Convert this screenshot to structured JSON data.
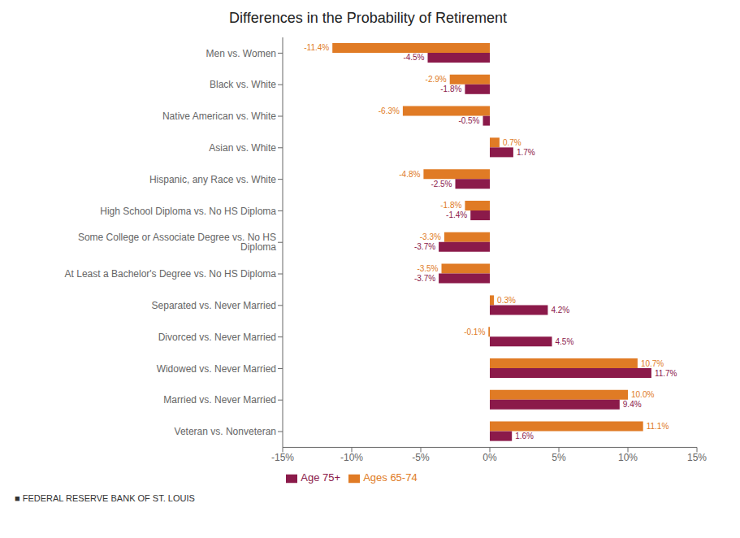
{
  "chart_data": {
    "type": "bar",
    "title": "Differences in the Probability of Retirement",
    "orientation": "horizontal",
    "categories": [
      "Men vs. Women",
      "Black vs. White",
      "Native American vs. White",
      "Asian vs. White",
      "Hispanic, any Race vs. White",
      "High School Diploma vs. No HS Diploma",
      "Some College or Associate Degree vs. No HS Diploma",
      "At Least a Bachelor's Degree vs. No HS Diploma",
      "Separated vs. Never Married",
      "Divorced vs. Never Married",
      "Widowed vs. Never Married",
      "Married vs. Never Married",
      "Veteran vs. Nonveteran"
    ],
    "series": [
      {
        "name": "Ages 65-74",
        "color": "#E07B25",
        "values": [
          -11.4,
          -2.9,
          -6.3,
          0.7,
          -4.8,
          -1.8,
          -3.3,
          -3.5,
          0.3,
          -0.1,
          10.7,
          10.0,
          11.1
        ],
        "value_labels": [
          "-11.4%",
          "-2.9%",
          "-6.3%",
          "0.7%",
          "-4.8%",
          "-1.8%",
          "-3.3%",
          "-3.5%",
          "0.3%",
          "-0.1%",
          "10.7%",
          "10.0%",
          "11.1%"
        ]
      },
      {
        "name": "Age 75+",
        "color": "#8B1A4A",
        "values": [
          -4.5,
          -1.8,
          -0.5,
          1.7,
          -2.5,
          -1.4,
          -3.7,
          -3.7,
          4.2,
          4.5,
          11.7,
          9.4,
          1.6
        ],
        "value_labels": [
          "-4.5%",
          "-1.8%",
          "-0.5%",
          "1.7%",
          "-2.5%",
          "-1.4%",
          "-3.7%",
          "-3.7%",
          "4.2%",
          "4.5%",
          "11.7%",
          "9.4%",
          "1.6%"
        ]
      }
    ],
    "xlim": [
      -15,
      15
    ],
    "xticks": [
      {
        "value": -15,
        "label": "-15%"
      },
      {
        "value": -10,
        "label": "-10%"
      },
      {
        "value": -5,
        "label": "-5%"
      },
      {
        "value": 0,
        "label": "0%"
      },
      {
        "value": 5,
        "label": "5%"
      },
      {
        "value": 10,
        "label": "10%"
      },
      {
        "value": 15,
        "label": "15%"
      }
    ],
    "data_labels": true,
    "grid": false,
    "legend": "bottom",
    "annotations": [
      "■  FEDERAL RESERVE BANK OF ST. LOUIS"
    ]
  }
}
